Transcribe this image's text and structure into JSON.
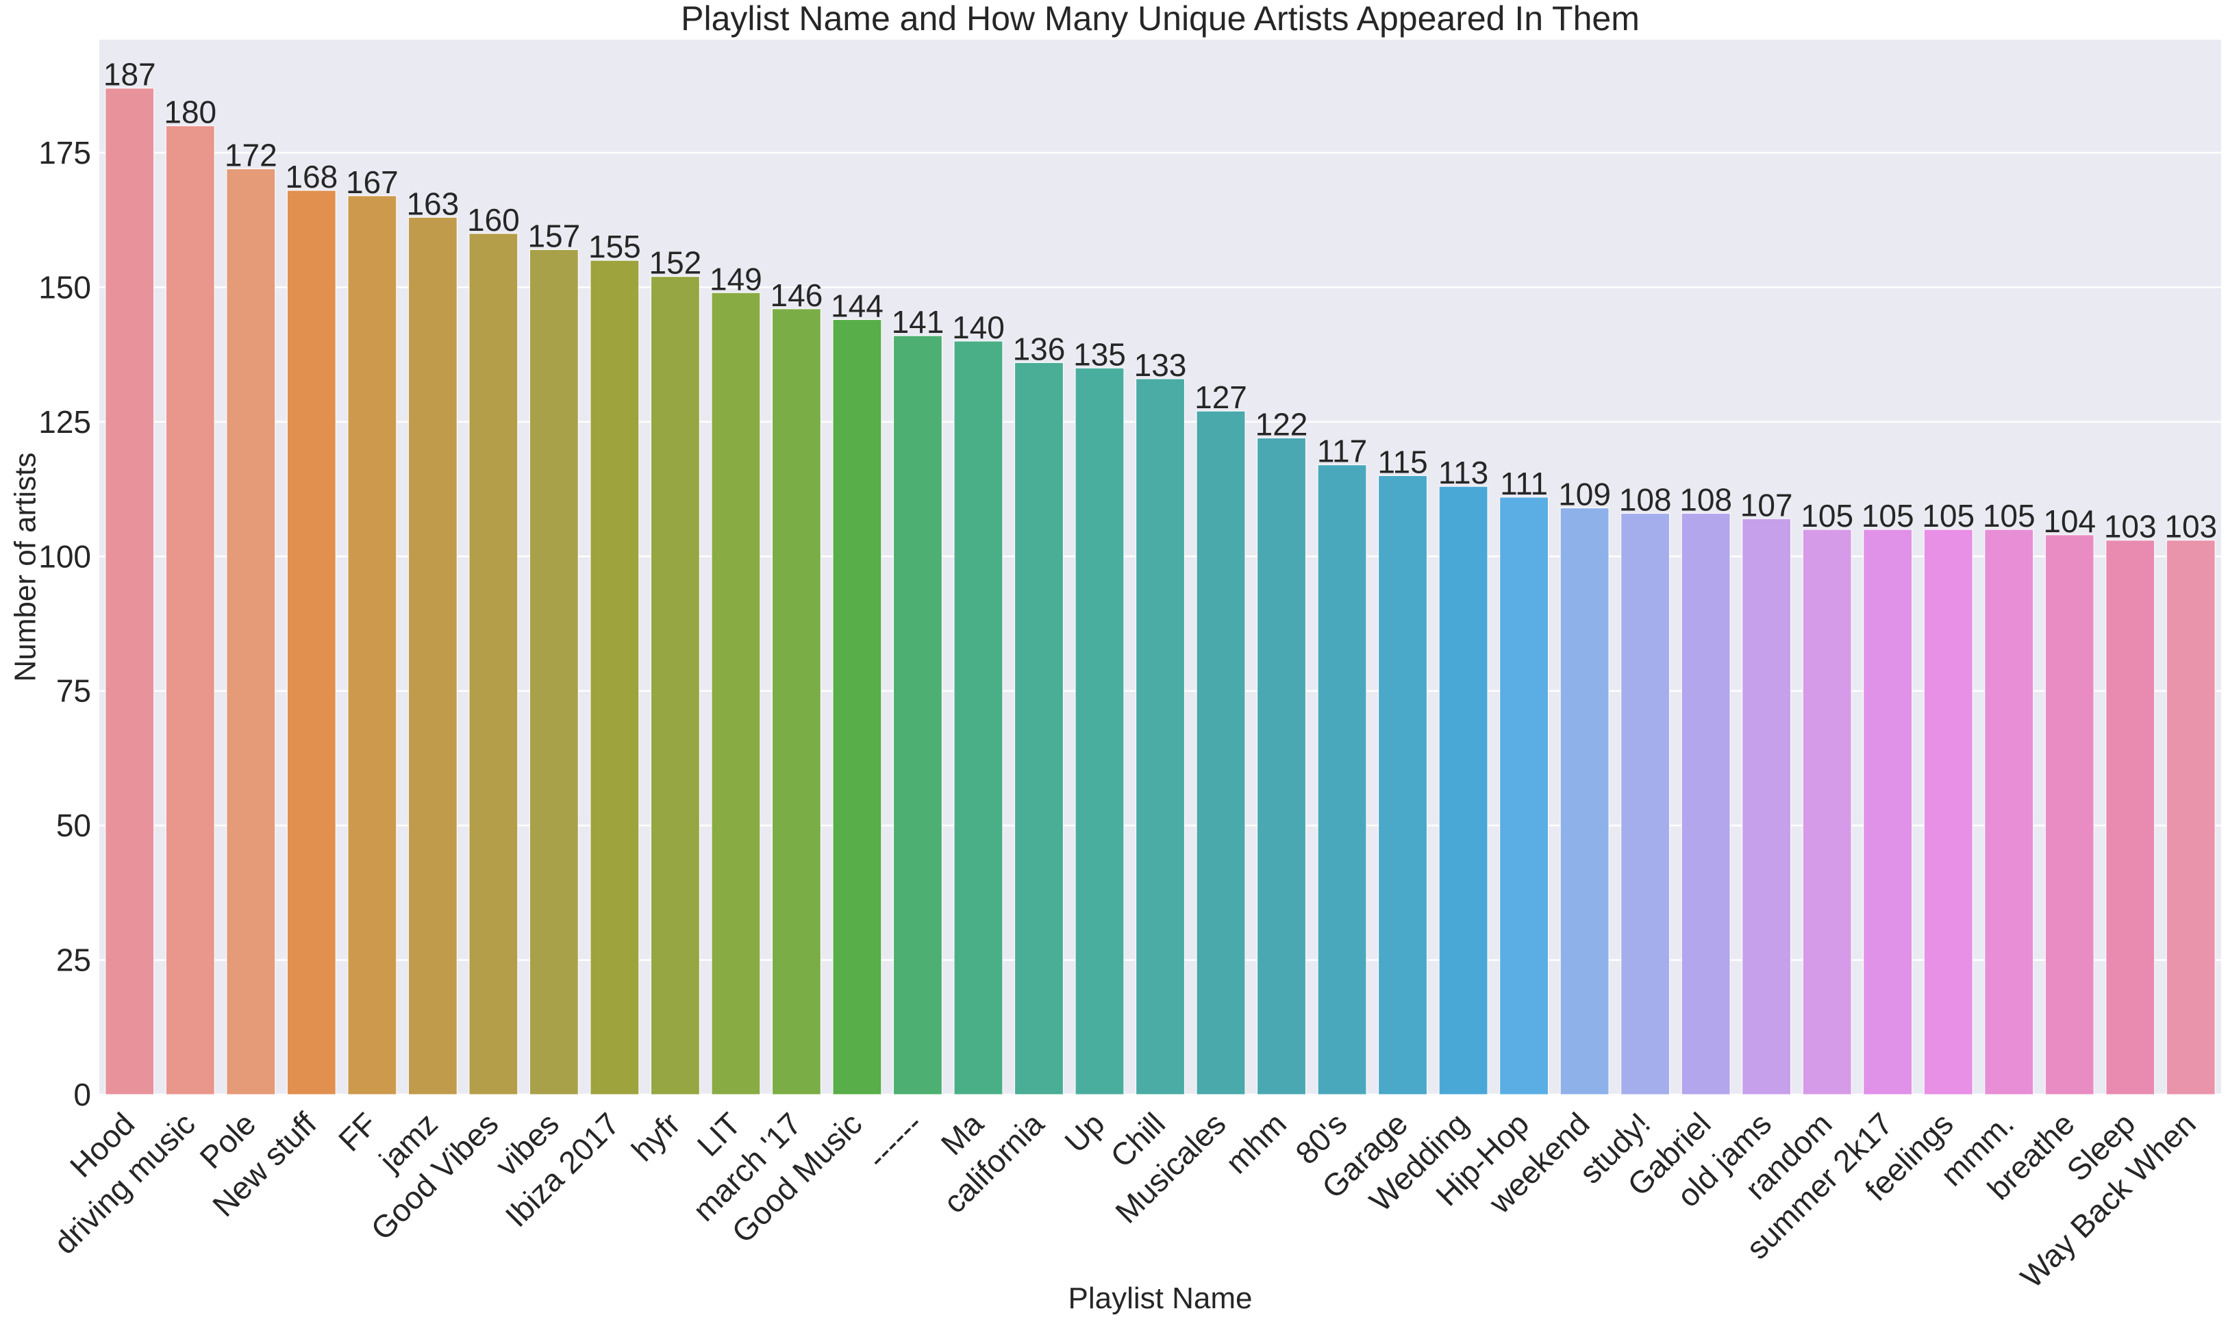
{
  "chart_data": {
    "type": "bar",
    "title": "Playlist Name and How Many Unique Artists Appeared In Them",
    "xlabel": "Playlist Name",
    "ylabel": "Number of artists",
    "ylim": [
      0,
      196
    ],
    "yticks": [
      0,
      25,
      50,
      75,
      100,
      125,
      150,
      175
    ],
    "grid": true,
    "legend": "none",
    "background_color": "#eaeaf2",
    "categories": [
      "Hood",
      "driving music",
      "Pole",
      "New stuff",
      "FF",
      "jamz",
      "Good Vibes",
      "vibes",
      "Ibiza 2017",
      "hyfr",
      "LIT",
      "march '17",
      "Good Music",
      "------",
      "Ma",
      "california",
      "Up",
      "Chill",
      "Musicales",
      "mhm",
      "80's",
      "Garage",
      "Wedding",
      "Hip-Hop",
      "weekend",
      "study!",
      "Gabriel",
      "old jams",
      "random",
      "summer 2k17",
      "feelings",
      "mmm.",
      "breathe",
      "Sleep",
      "Way Back When"
    ],
    "values": [
      187,
      180,
      172,
      168,
      167,
      163,
      160,
      157,
      155,
      152,
      149,
      146,
      144,
      141,
      140,
      136,
      135,
      133,
      127,
      122,
      117,
      115,
      113,
      111,
      109,
      108,
      108,
      107,
      105,
      105,
      105,
      105,
      104,
      103,
      103
    ],
    "colors": [
      "#e8939c",
      "#e9968c",
      "#e59a78",
      "#e19050",
      "#cd9a4d",
      "#c09b4c",
      "#b49e49",
      "#a9a04a",
      "#9fa33e",
      "#95a642",
      "#89ab44",
      "#7bad46",
      "#58ae48",
      "#4db072",
      "#4aaf86",
      "#4aad95",
      "#4aae9f",
      "#4aaca5",
      "#4aa9aa",
      "#4aa8b2",
      "#4aa8bd",
      "#4aa8c9",
      "#4aa8d7",
      "#5aaee4",
      "#8fb1ea",
      "#a5aeec",
      "#b3a6ec",
      "#c7a0ec",
      "#d69be8",
      "#e091e8",
      "#e88fe6",
      "#e78ed6",
      "#e98cc4",
      "#e98bb0",
      "#e994ab"
    ]
  }
}
